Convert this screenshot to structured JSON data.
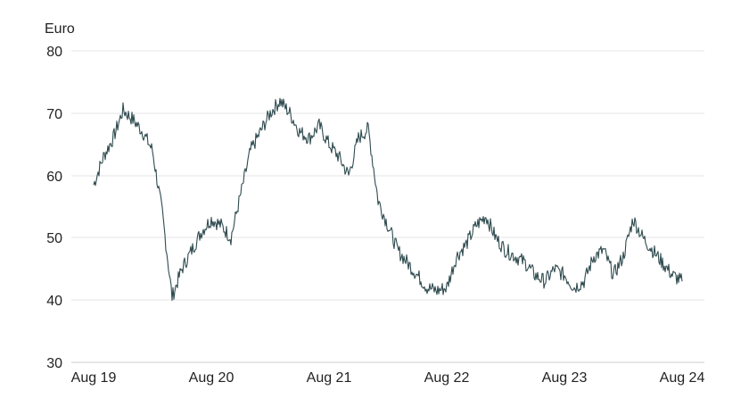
{
  "chart_data": {
    "type": "line",
    "ylabel": "Euro",
    "ylim": [
      30,
      80
    ],
    "y_ticks": [
      "80",
      "70",
      "60",
      "50",
      "40",
      "30"
    ],
    "x_ticks": [
      "Aug 19",
      "Aug 20",
      "Aug 21",
      "Aug 22",
      "Aug 23",
      "Aug 24"
    ],
    "grid": "horizontal",
    "series_color": "#2f4b4f",
    "series": [
      {
        "x": [
          "2019-08",
          "2019-09",
          "2019-10",
          "2019-11",
          "2019-12",
          "2020-01",
          "2020-02",
          "2020-03",
          "2020-04",
          "2020-05",
          "2020-06",
          "2020-07",
          "2020-08",
          "2020-09",
          "2020-10",
          "2020-11",
          "2020-12",
          "2021-01",
          "2021-02",
          "2021-03",
          "2021-04",
          "2021-05",
          "2021-06",
          "2021-07",
          "2021-08",
          "2021-09",
          "2021-10",
          "2021-11",
          "2021-12",
          "2022-01",
          "2022-02",
          "2022-03",
          "2022-04",
          "2022-05",
          "2022-06",
          "2022-07",
          "2022-08",
          "2022-09",
          "2022-10",
          "2022-11",
          "2022-12",
          "2023-01",
          "2023-02",
          "2023-03",
          "2023-04",
          "2023-05",
          "2023-06",
          "2023-07",
          "2023-08",
          "2023-09",
          "2023-10",
          "2023-11",
          "2023-12",
          "2024-01",
          "2024-02",
          "2024-03",
          "2024-04",
          "2024-05",
          "2024-06",
          "2024-07",
          "2024-08"
        ],
        "y": [
          58.5,
          63,
          66,
          70.5,
          69,
          67,
          64,
          54,
          40.5,
          45,
          48,
          51,
          53,
          52,
          50,
          57,
          64,
          67,
          70,
          72,
          70,
          67,
          66,
          68,
          65,
          63,
          60,
          66,
          67.5,
          56,
          52,
          48,
          46,
          44,
          42,
          41.5,
          42,
          47,
          49,
          52,
          53.5,
          50,
          48,
          47,
          46,
          44,
          43,
          45,
          44,
          42,
          43,
          47,
          48,
          44,
          47,
          53,
          50,
          48,
          46,
          44,
          43
        ]
      }
    ]
  }
}
